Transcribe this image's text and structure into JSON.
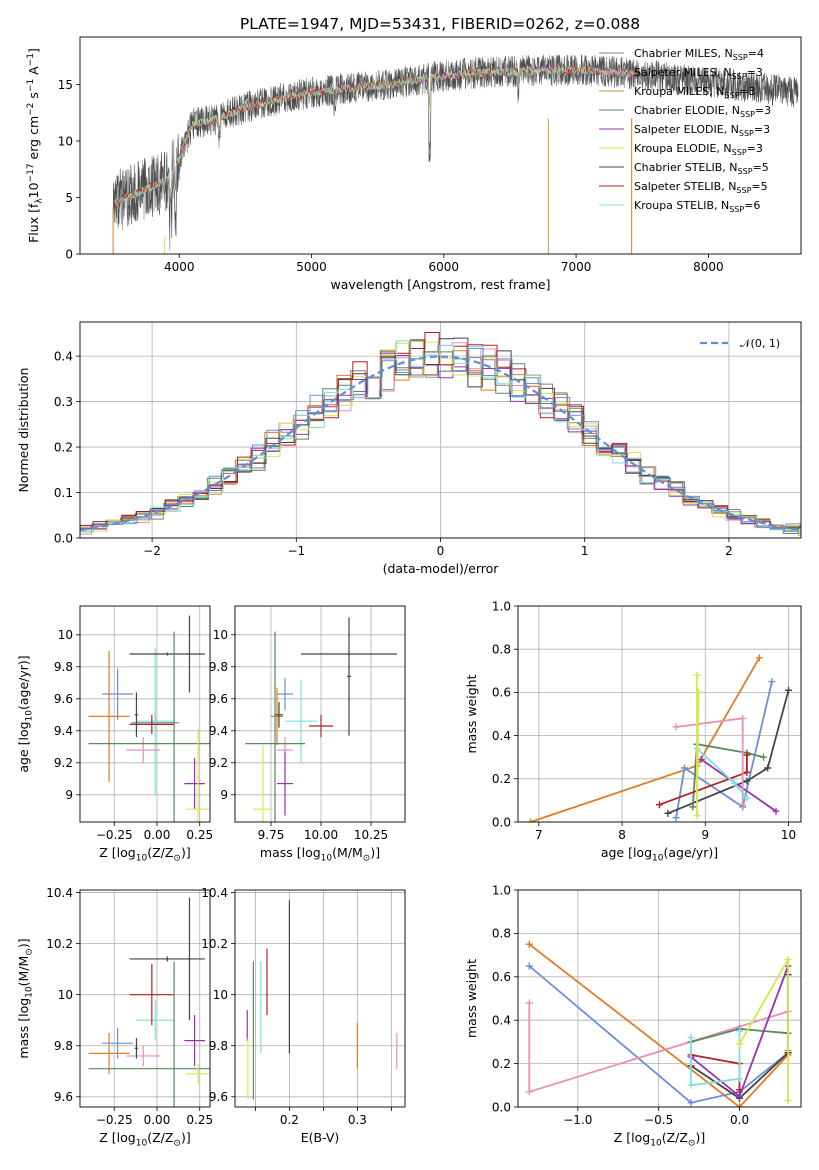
{
  "figure_title": "PLATE=1947, MJD=53431, FIBERID=0262, z=0.088",
  "colors": [
    "#808080",
    "#b22222",
    "#7fdfdf",
    "#e07b28",
    "#6a8fd8",
    "#5a8a5a",
    "#9b30b0",
    "#e8e050",
    "#444444",
    "#e98fb8",
    "#d4e84a"
  ],
  "chart_data": [
    {
      "id": "spectrum",
      "type": "line",
      "title": "",
      "xlabel": "wavelength [Angstrom, rest frame]",
      "ylabel": "Flux [f",
      "ylabel_sub": "λ",
      "ylabel_mid": "10",
      "ylabel_sup1": "−17",
      "ylabel_tail": " erg cm",
      "ylabel_sup2": "−2",
      "ylabel_tail2": " s",
      "ylabel_sup3": "−1",
      "ylabel_tail3": " A",
      "ylabel_sup4": "−1",
      "ylabel_end": "]",
      "xlim": [
        3250,
        8700
      ],
      "ylim": [
        0,
        19.2
      ],
      "xticks": [
        4000,
        5000,
        6000,
        7000,
        8000
      ],
      "yticks": [
        0,
        5,
        10,
        15
      ],
      "grid": false,
      "legend_position": "top-right",
      "legend": [
        {
          "name": "Chabrier MILES, N",
          "sub": "SSP",
          "tail": "=4",
          "color": "#808080"
        },
        {
          "name": "Salpeter MILES, N",
          "sub": "SSP",
          "tail": "=3",
          "color": "#e98fb8"
        },
        {
          "name": "Kroupa MILES, N",
          "sub": "SSP",
          "tail": "=3",
          "color": "#c8923c"
        },
        {
          "name": "Chabrier ELODIE, N",
          "sub": "SSP",
          "tail": "=3",
          "color": "#5a8a5a"
        },
        {
          "name": "Salpeter ELODIE, N",
          "sub": "SSP",
          "tail": "=3",
          "color": "#9b30b0"
        },
        {
          "name": "Kroupa ELODIE, N",
          "sub": "SSP",
          "tail": "=3",
          "color": "#e8e050"
        },
        {
          "name": "Chabrier STELIB, N",
          "sub": "SSP",
          "tail": "=5",
          "color": "#444444"
        },
        {
          "name": "Salpeter STELIB, N",
          "sub": "SSP",
          "tail": "=5",
          "color": "#b22222"
        },
        {
          "name": "Kroupa STELIB, N",
          "sub": "SSP",
          "tail": "=6",
          "color": "#7fdfdf"
        }
      ],
      "spectrum_nodes": {
        "x": [
          3500,
          3700,
          3900,
          4000,
          4100,
          4300,
          4500,
          4800,
          5000,
          5300,
          5600,
          5900,
          6200,
          6600,
          7000,
          7400,
          7800,
          8300,
          8700
        ],
        "y": [
          4.5,
          5.5,
          6.5,
          8.5,
          11.5,
          12.0,
          13.0,
          13.8,
          14.3,
          14.7,
          15.0,
          15.6,
          16.0,
          16.2,
          16.3,
          16.0,
          15.5,
          14.8,
          14.3
        ]
      }
    },
    {
      "id": "residuals",
      "type": "histogram",
      "title": "",
      "xlabel": "(data-model)/error",
      "ylabel": "Normed distribution",
      "xlim": [
        -2.5,
        2.5
      ],
      "ylim": [
        0,
        0.475
      ],
      "xticks": [
        -2,
        -1,
        0,
        1,
        2
      ],
      "yticks": [
        0.0,
        0.1,
        0.2,
        0.3,
        0.4
      ],
      "grid": true,
      "legend_position": "top-right",
      "legend": [
        {
          "name": "𝒩(0, 1)",
          "color": "#5b8fd9",
          "style": "dashed"
        }
      ],
      "bin_width": 0.1,
      "series_colors": [
        "#808080",
        "#e98fb8",
        "#e07b28",
        "#5a8a5a",
        "#9b30b0",
        "#d4e84a",
        "#444444",
        "#b22222",
        "#7fdfdf",
        "#6a8fd8"
      ]
    },
    {
      "id": "age-vs-Z",
      "type": "errorbar",
      "title": "",
      "xlabel": "Z [log",
      "xlabel_sub": "10",
      "xlabel_tail": "(Z/Z",
      "xlabel_sub2": "⊙",
      "xlabel_end": ")]",
      "ylabel": "age  [log",
      "ylabel_sub": "10",
      "ylabel_end": "(age/yr)]",
      "xlim": [
        -0.45,
        0.31
      ],
      "ylim": [
        8.83,
        10.18
      ],
      "xticks": [
        -0.25,
        0.0,
        0.25
      ],
      "xticklabels": [
        "−0.25",
        "0.00",
        "0.25"
      ],
      "yticks": [
        9.0,
        9.2,
        9.4,
        9.6,
        9.8,
        10.0
      ],
      "grid": true,
      "points": [
        {
          "x": -0.23,
          "y": 9.63,
          "xerr": 0.09,
          "yerr": 0.16,
          "color": "#6a8fd8"
        },
        {
          "x": -0.28,
          "y": 9.49,
          "xerr": 0.12,
          "yerr": 0.41,
          "color": "#e07b28"
        },
        {
          "x": -0.01,
          "y": 9.45,
          "xerr": 0.14,
          "yerr": 0.05,
          "color": "#808080"
        },
        {
          "x": -0.01,
          "y": 9.46,
          "xerr": 0.11,
          "yerr": 0.46,
          "color": "#7fdfdf"
        },
        {
          "x": -0.08,
          "y": 9.28,
          "xerr": 0.1,
          "yerr": 0.08,
          "color": "#e98fb8"
        },
        {
          "x": -0.12,
          "y": 9.5,
          "xerr": 0.01,
          "yerr": 0.14,
          "color": "#444444"
        },
        {
          "x": -0.03,
          "y": 9.44,
          "xerr": 0.13,
          "yerr": 0.06,
          "color": "#b22222"
        },
        {
          "x": 0.06,
          "y": 9.88,
          "xerr": 0.22,
          "yerr": 0.01,
          "color": "#444444"
        },
        {
          "x": 0.19,
          "y": 9.88,
          "xerr": 0.01,
          "yerr": 0.24,
          "color": "#444444"
        },
        {
          "x": 0.1,
          "y": 9.32,
          "xerr": 0.5,
          "yerr": 0.7,
          "color": "#5a8a5a"
        },
        {
          "x": 0.22,
          "y": 9.07,
          "xerr": 0.06,
          "yerr": 0.16,
          "color": "#9b30b0"
        },
        {
          "x": 0.24,
          "y": 8.91,
          "xerr": 0.07,
          "yerr": 0.5,
          "color": "#d4e84a"
        }
      ]
    },
    {
      "id": "age-vs-mass",
      "type": "errorbar",
      "title": "",
      "xlabel": "mass [log",
      "xlabel_sub": "10",
      "xlabel_tail": "(M/M",
      "xlabel_sub2": "⊙",
      "xlabel_end": ")]",
      "xlim": [
        9.57,
        10.42
      ],
      "ylim": [
        8.83,
        10.18
      ],
      "xticks": [
        9.75,
        10.0,
        10.25
      ],
      "xticklabels": [
        "9.75",
        "10.00",
        "10.25"
      ],
      "yticks": [
        9.0,
        9.2,
        9.4,
        9.6,
        9.8,
        10.0
      ],
      "grid": true,
      "points": [
        {
          "x": 9.82,
          "y": 9.63,
          "xerr": 0.04,
          "yerr": 0.1,
          "color": "#6a8fd8"
        },
        {
          "x": 9.78,
          "y": 9.49,
          "xerr": 0.03,
          "yerr": 0.18,
          "color": "#e07b28"
        },
        {
          "x": 9.9,
          "y": 9.46,
          "xerr": 0.08,
          "yerr": 0.26,
          "color": "#7fdfdf"
        },
        {
          "x": 9.82,
          "y": 9.28,
          "xerr": 0.04,
          "yerr": 0.08,
          "color": "#e98fb8"
        },
        {
          "x": 9.79,
          "y": 9.5,
          "xerr": 0.02,
          "yerr": 0.08,
          "color": "#444444"
        },
        {
          "x": 10.0,
          "y": 9.43,
          "xerr": 0.06,
          "yerr": 0.07,
          "color": "#b22222"
        },
        {
          "x": 10.14,
          "y": 9.88,
          "xerr": 0.24,
          "yerr": 0.01,
          "color": "#444444"
        },
        {
          "x": 10.14,
          "y": 9.74,
          "xerr": 0.01,
          "yerr": 0.37,
          "color": "#444444"
        },
        {
          "x": 9.77,
          "y": 9.32,
          "xerr": 0.15,
          "yerr": 0.7,
          "color": "#5a8a5a"
        },
        {
          "x": 9.82,
          "y": 9.07,
          "xerr": 0.04,
          "yerr": 0.2,
          "color": "#9b30b0"
        },
        {
          "x": 9.71,
          "y": 8.91,
          "xerr": 0.05,
          "yerr": 0.4,
          "color": "#d4e84a"
        }
      ]
    },
    {
      "id": "weight-vs-age",
      "type": "line",
      "title": "",
      "xlabel": "age  [log",
      "xlabel_sub": "10",
      "xlabel_end": "(age/yr)]",
      "ylabel": "mass weight",
      "xlim": [
        6.75,
        10.15
      ],
      "ylim": [
        0,
        1
      ],
      "xticks": [
        7,
        8,
        9,
        10
      ],
      "yticks": [
        0.0,
        0.2,
        0.4,
        0.6,
        0.8,
        1.0
      ],
      "grid": true,
      "series": [
        {
          "color": "#e07b28",
          "x": [
            6.9,
            8.9,
            9.65
          ],
          "y": [
            0.0,
            0.26,
            0.76
          ]
        },
        {
          "color": "#6a8fd8",
          "x": [
            8.65,
            8.75,
            9.45,
            9.8
          ],
          "y": [
            0.02,
            0.25,
            0.07,
            0.65
          ]
        },
        {
          "color": "#444444",
          "x": [
            8.55,
            9.5,
            9.75,
            10.0
          ],
          "y": [
            0.04,
            0.19,
            0.25,
            0.61
          ]
        },
        {
          "color": "#5a8a5a",
          "x": [
            8.85,
            8.9,
            9.5,
            9.7
          ],
          "y": [
            0.07,
            0.36,
            0.32,
            0.3
          ]
        },
        {
          "color": "#b22222",
          "x": [
            8.45,
            9.5,
            9.5
          ],
          "y": [
            0.08,
            0.23,
            0.31
          ]
        },
        {
          "color": "#9b30b0",
          "x": [
            8.95,
            9.85
          ],
          "y": [
            0.29,
            0.05
          ]
        },
        {
          "color": "#e98fb8",
          "x": [
            8.65,
            9.45,
            9.45
          ],
          "y": [
            0.44,
            0.48,
            0.08
          ]
        },
        {
          "color": "#7fdfdf",
          "x": [
            8.9,
            9.35,
            9.5
          ],
          "y": [
            0.34,
            0.18,
            0.11
          ]
        },
        {
          "color": "#d4e84a",
          "x": [
            8.9,
            8.9,
            8.92
          ],
          "y": [
            0.68,
            0.03,
            0.6
          ]
        }
      ]
    },
    {
      "id": "mass-vs-Z",
      "type": "errorbar",
      "title": "",
      "xlabel": "Z [log",
      "xlabel_sub": "10",
      "xlabel_tail": "(Z/Z",
      "xlabel_sub2": "⊙",
      "xlabel_end": ")]",
      "ylabel": "mass [log",
      "ylabel_sub": "10",
      "ylabel_tail": "(M/M",
      "ylabel_sub2": "⊙",
      "ylabel_end": ")]",
      "xlim": [
        -0.45,
        0.31
      ],
      "ylim": [
        9.56,
        10.41
      ],
      "xticks": [
        -0.25,
        0.0,
        0.25
      ],
      "xticklabels": [
        "−0.25",
        "0.00",
        "0.25"
      ],
      "yticks": [
        9.6,
        9.8,
        10.0,
        10.2,
        10.4
      ],
      "grid": true,
      "points": [
        {
          "x": -0.23,
          "y": 9.81,
          "xerr": 0.09,
          "yerr": 0.06,
          "color": "#6a8fd8"
        },
        {
          "x": -0.28,
          "y": 9.77,
          "xerr": 0.12,
          "yerr": 0.08,
          "color": "#e07b28"
        },
        {
          "x": -0.01,
          "y": 9.9,
          "xerr": 0.11,
          "yerr": 0.08,
          "color": "#7fdfdf"
        },
        {
          "x": -0.08,
          "y": 9.76,
          "xerr": 0.1,
          "yerr": 0.04,
          "color": "#e98fb8"
        },
        {
          "x": -0.12,
          "y": 9.79,
          "xerr": 0.01,
          "yerr": 0.04,
          "color": "#444444"
        },
        {
          "x": -0.03,
          "y": 10.0,
          "xerr": 0.13,
          "yerr": 0.12,
          "color": "#b22222"
        },
        {
          "x": 0.06,
          "y": 10.14,
          "xerr": 0.22,
          "yerr": 0.01,
          "color": "#444444"
        },
        {
          "x": 0.19,
          "y": 10.14,
          "xerr": 0.01,
          "yerr": 0.24,
          "color": "#444444"
        },
        {
          "x": 0.1,
          "y": 9.71,
          "xerr": 0.5,
          "yerr": 0.42,
          "color": "#5a8a5a"
        },
        {
          "x": 0.22,
          "y": 9.82,
          "xerr": 0.06,
          "yerr": 0.1,
          "color": "#9b30b0"
        },
        {
          "x": 0.24,
          "y": 9.69,
          "xerr": 0.07,
          "yerr": 0.04,
          "color": "#d4e84a"
        }
      ]
    },
    {
      "id": "mass-vs-ebv",
      "type": "errorbar",
      "title": "",
      "xlabel": "E(B-V)",
      "xlim": [
        0.12,
        0.37
      ],
      "ylim": [
        9.56,
        10.41
      ],
      "xticks": [
        0.15,
        0.2,
        0.25,
        0.3,
        0.35
      ],
      "xticklabels": [
        "",
        "0.2",
        "",
        "0.3",
        ""
      ],
      "yticks": [
        9.6,
        9.8,
        10.0,
        10.2,
        10.4
      ],
      "grid": true,
      "points": [
        {
          "x": 0.138,
          "y": 9.88,
          "xerr": 0.0,
          "yerr": 0.06,
          "color": "#9b30b0"
        },
        {
          "x": 0.139,
          "y": 9.71,
          "xerr": 0.0,
          "yerr": 0.12,
          "color": "#d4e84a"
        },
        {
          "x": 0.147,
          "y": 9.86,
          "xerr": 0.0,
          "yerr": 0.27,
          "color": "#5a8a5a"
        },
        {
          "x": 0.158,
          "y": 9.95,
          "xerr": 0.0,
          "yerr": 0.18,
          "color": "#7fdfdf"
        },
        {
          "x": 0.167,
          "y": 10.05,
          "xerr": 0.0,
          "yerr": 0.13,
          "color": "#b22222"
        },
        {
          "x": 0.2,
          "y": 10.07,
          "xerr": 0.0,
          "yerr": 0.3,
          "color": "#444444"
        },
        {
          "x": 0.3,
          "y": 9.8,
          "xerr": 0.0,
          "yerr": 0.09,
          "color": "#e07b28"
        },
        {
          "x": 0.358,
          "y": 9.78,
          "xerr": 0.0,
          "yerr": 0.07,
          "color": "#e98fb8"
        }
      ]
    },
    {
      "id": "weight-vs-Z",
      "type": "line",
      "title": "",
      "xlabel": "Z [log",
      "xlabel_sub": "10",
      "xlabel_tail": "(Z/Z",
      "xlabel_sub2": "⊙",
      "xlabel_end": ")]",
      "ylabel": "mass weight",
      "xlim": [
        -1.37,
        0.38
      ],
      "ylim": [
        0,
        1
      ],
      "xticks": [
        -1.0,
        -0.5,
        0.0
      ],
      "xticklabels": [
        "−1.0",
        "−0.5",
        "0.0"
      ],
      "yticks": [
        0.0,
        0.2,
        0.4,
        0.6,
        0.8,
        1.0
      ],
      "grid": true,
      "series": [
        {
          "color": "#e07b28",
          "x": [
            -1.3,
            0.0,
            0.3,
            0.3
          ],
          "y": [
            0.75,
            0.0,
            0.24,
            0.26
          ]
        },
        {
          "color": "#6a8fd8",
          "x": [
            -1.3,
            -0.3,
            0.0,
            0.3
          ],
          "y": [
            0.65,
            0.02,
            0.07,
            0.25
          ]
        },
        {
          "color": "#e98fb8",
          "x": [
            -1.3,
            -1.3,
            0.3
          ],
          "y": [
            0.48,
            0.07,
            0.44
          ]
        },
        {
          "color": "#444444",
          "x": [
            -0.3,
            0.0,
            0.3,
            0.3
          ],
          "y": [
            0.19,
            0.04,
            0.25,
            0.61
          ]
        },
        {
          "color": "#5a8a5a",
          "x": [
            -0.3,
            0.0,
            0.3
          ],
          "y": [
            0.3,
            0.36,
            0.34
          ]
        },
        {
          "color": "#b22222",
          "x": [
            -0.3,
            0.0,
            0.0
          ],
          "y": [
            0.24,
            0.2,
            0.08
          ]
        },
        {
          "color": "#9b30b0",
          "x": [
            -0.3,
            0.0,
            0.3
          ],
          "y": [
            0.23,
            0.05,
            0.65
          ]
        },
        {
          "color": "#7fdfdf",
          "x": [
            -0.3,
            -0.3,
            0.0,
            0.0
          ],
          "y": [
            0.32,
            0.1,
            0.13,
            0.35
          ]
        },
        {
          "color": "#d4e84a",
          "x": [
            0.0,
            0.3,
            0.3
          ],
          "y": [
            0.29,
            0.68,
            0.03
          ]
        }
      ]
    }
  ]
}
